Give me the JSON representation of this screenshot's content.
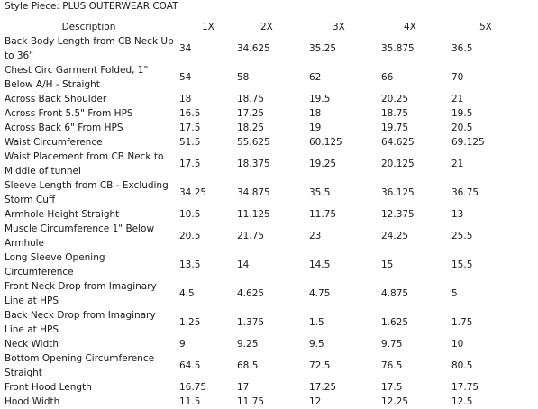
{
  "style_title": "Style Piece: PLUS OUTERWEAR COAT",
  "headers": [
    "Description",
    "1X",
    "2X",
    "3X",
    "4X",
    "5X"
  ],
  "rows": [
    {
      "description": "Back Body Length from CB Neck Up to 36\"",
      "values": [
        "34",
        "34.625",
        "35.25",
        "35.875",
        "36.5"
      ]
    },
    {
      "description": "Chest Circ Garment Folded, 1\" Below A/H - Straight",
      "values": [
        "54",
        "58",
        "62",
        "66",
        "70"
      ]
    },
    {
      "description": "Across Back Shoulder",
      "values": [
        "18",
        "18.75",
        "19.5",
        "20.25",
        "21"
      ]
    },
    {
      "description": "Across Front 5.5\" From HPS",
      "values": [
        "16.5",
        "17.25",
        "18",
        "18.75",
        "19.5"
      ]
    },
    {
      "description": "Across Back 6\" From HPS",
      "values": [
        "17.5",
        "18.25",
        "19",
        "19.75",
        "20.5"
      ]
    },
    {
      "description": "Waist Circumference",
      "values": [
        "51.5",
        "55.625",
        "60.125",
        "64.625",
        "69.125"
      ]
    },
    {
      "description": "Waist Placement from CB Neck to Middle of tunnel",
      "values": [
        "17.5",
        "18.375",
        "19.25",
        "20.125",
        "21"
      ]
    },
    {
      "description": "Sleeve Length from CB - Excluding Storm Cuff",
      "values": [
        "34.25",
        "34.875",
        "35.5",
        "36.125",
        "36.75"
      ]
    },
    {
      "description": "Armhole Height Straight",
      "values": [
        "10.5",
        "11.125",
        "11.75",
        "12.375",
        "13"
      ]
    },
    {
      "description": "Muscle Circumference 1\" Below Armhole",
      "values": [
        "20.5",
        "21.75",
        "23",
        "24.25",
        "25.5"
      ]
    },
    {
      "description": "Long Sleeve Opening Circumference",
      "values": [
        "13.5",
        "14",
        "14.5",
        "15",
        "15.5"
      ]
    },
    {
      "description": "Front Neck Drop from Imaginary Line at HPS",
      "values": [
        "4.5",
        "4.625",
        "4.75",
        "4.875",
        "5"
      ]
    },
    {
      "description": "Back Neck Drop from Imaginary Line at HPS",
      "values": [
        "1.25",
        "1.375",
        "1.5",
        "1.625",
        "1.75"
      ]
    },
    {
      "description": "Neck Width",
      "values": [
        "9",
        "9.25",
        "9.5",
        "9.75",
        "10"
      ]
    },
    {
      "description": "Bottom Opening Circumference Straight",
      "values": [
        "64.5",
        "68.5",
        "72.5",
        "76.5",
        "80.5"
      ]
    },
    {
      "description": "Front Hood Length",
      "values": [
        "16.75",
        "17",
        "17.25",
        "17.5",
        "17.75"
      ]
    },
    {
      "description": "Hood Width",
      "values": [
        "11.5",
        "11.75",
        "12",
        "12.25",
        "12.5"
      ]
    }
  ]
}
